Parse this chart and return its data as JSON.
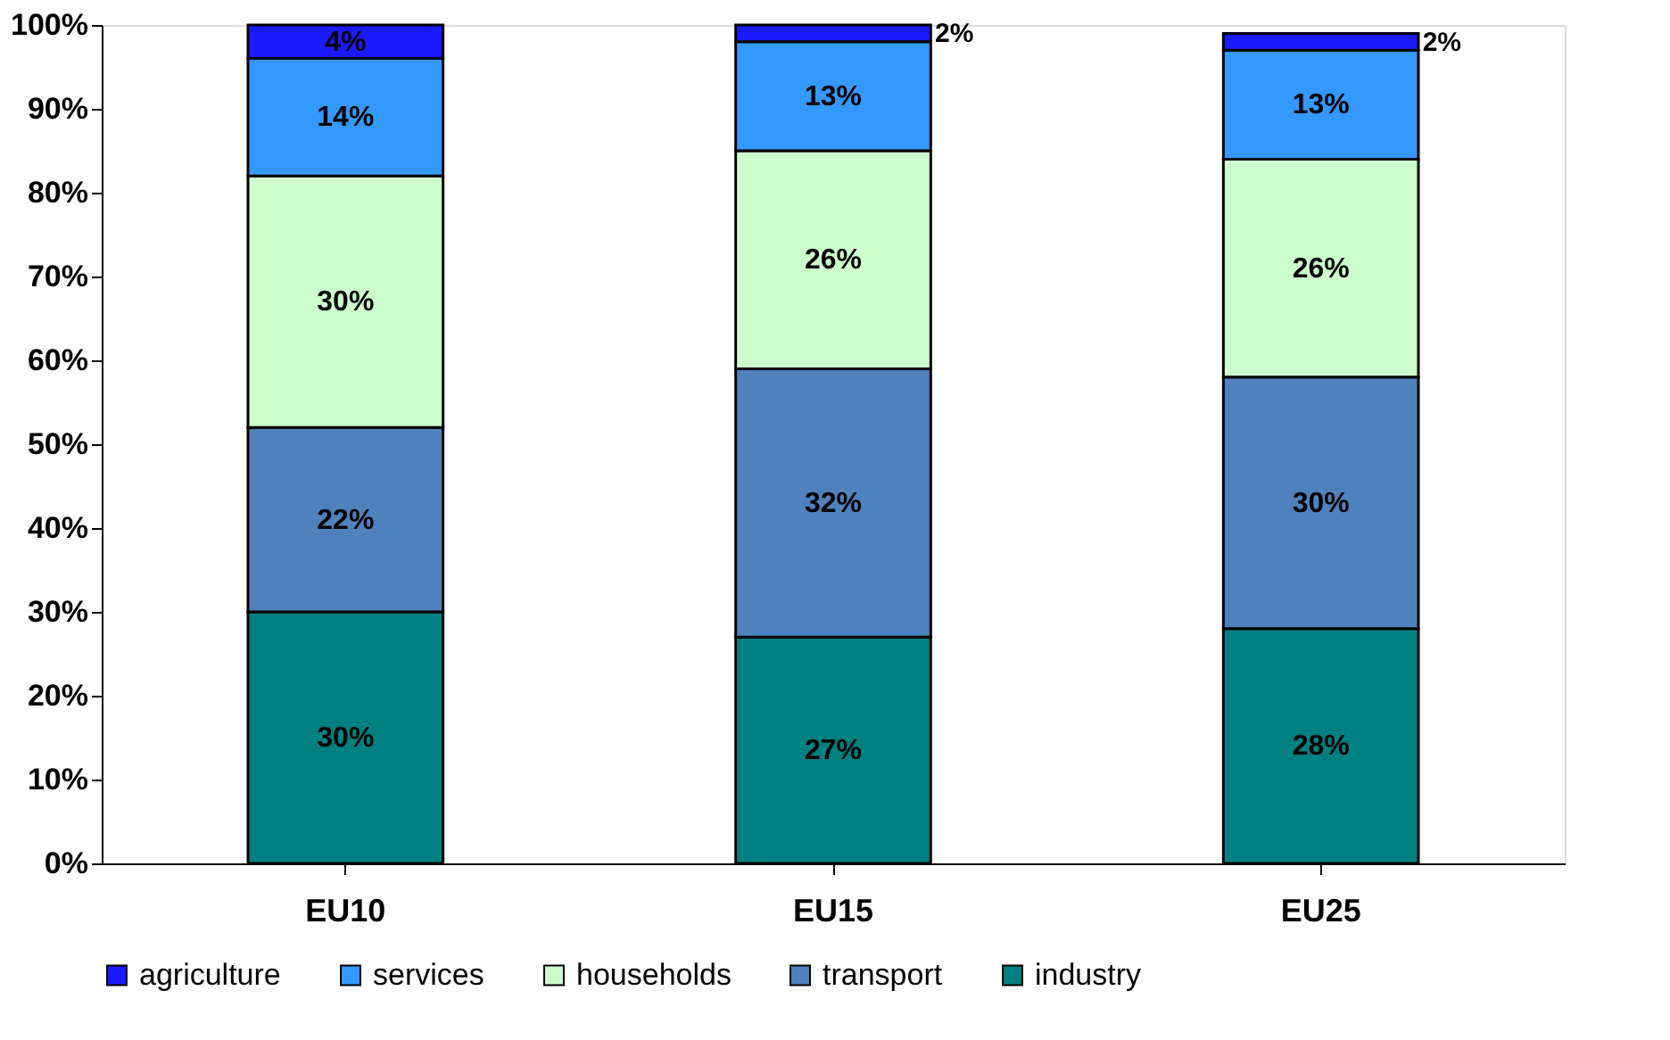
{
  "chart_data": {
    "type": "bar",
    "stacked": true,
    "categories": [
      "EU10",
      "EU15",
      "EU25"
    ],
    "series": [
      {
        "name": "industry",
        "color": "#008080",
        "values": [
          30,
          27,
          28
        ],
        "value_labels": [
          "30%",
          "27%",
          "28%"
        ]
      },
      {
        "name": "transport",
        "color": "#4f81bd",
        "values": [
          22,
          32,
          30
        ],
        "value_labels": [
          "22%",
          "32%",
          "30%"
        ]
      },
      {
        "name": "households",
        "color": "#ccffcc",
        "values": [
          30,
          26,
          26
        ],
        "value_labels": [
          "30%",
          "26%",
          "26%"
        ]
      },
      {
        "name": "services",
        "color": "#3399ff",
        "values": [
          14,
          13,
          13
        ],
        "value_labels": [
          "14%",
          "13%",
          "13%"
        ]
      },
      {
        "name": "agriculture",
        "color": "#1a1aff",
        "values": [
          4,
          2,
          2
        ],
        "value_labels": [
          "4%",
          "2%",
          "2%"
        ]
      }
    ],
    "ylim": [
      0,
      100
    ],
    "yticks": [
      {
        "value": 0,
        "label": "0%"
      },
      {
        "value": 10,
        "label": "10%"
      },
      {
        "value": 20,
        "label": "20%"
      },
      {
        "value": 30,
        "label": "30%"
      },
      {
        "value": 40,
        "label": "40%"
      },
      {
        "value": 50,
        "label": "50%"
      },
      {
        "value": 60,
        "label": "60%"
      },
      {
        "value": 70,
        "label": "70%"
      },
      {
        "value": 80,
        "label": "80%"
      },
      {
        "value": 90,
        "label": "90%"
      },
      {
        "value": 100,
        "label": "100%"
      }
    ],
    "grid": false,
    "legend": "bottom"
  }
}
